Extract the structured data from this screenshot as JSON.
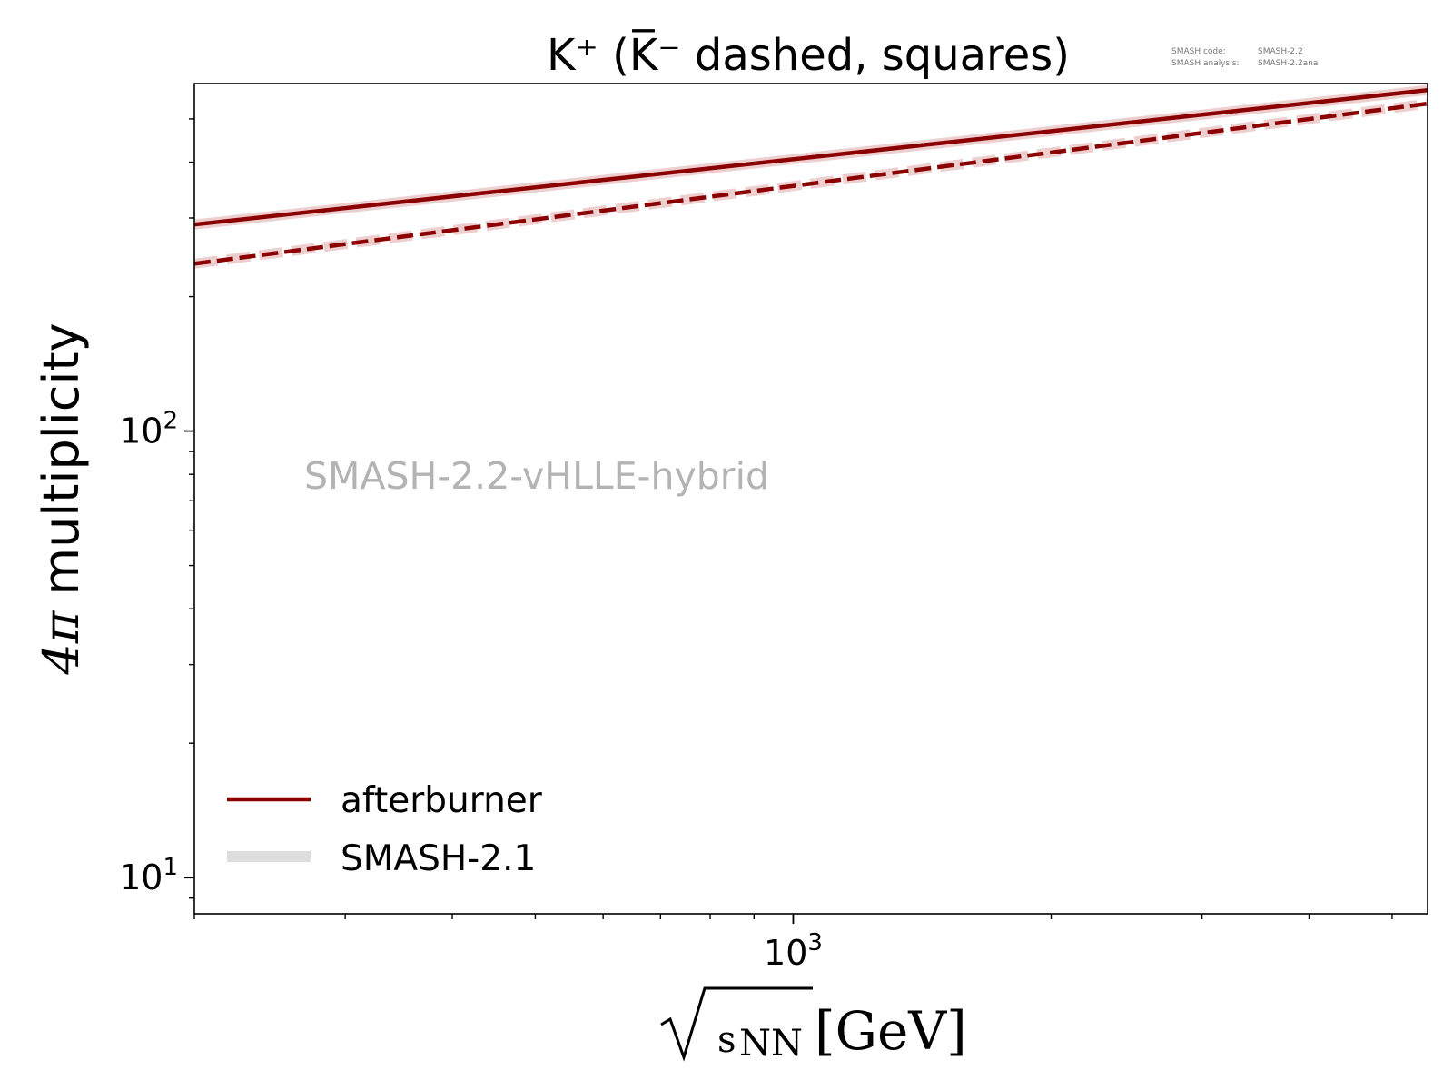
{
  "chart_data": {
    "type": "line",
    "title": "K⁺ (K̅⁻ dashed, squares)",
    "xlabel": "[GeV]",
    "xlabel_radicand": "s",
    "xlabel_radicand_sub": "NN",
    "ylabel_symbol": "4π",
    "ylabel_text": " multiplicity",
    "xscale": "log",
    "yscale": "log",
    "xlim": [
      200,
      5500
    ],
    "ylim": [
      8.3,
      600
    ],
    "x_major_ticks": [
      {
        "value": 1000,
        "base": "10",
        "exp": "3"
      }
    ],
    "x_minor_ticks": [
      200,
      300,
      400,
      500,
      600,
      700,
      800,
      900,
      2000,
      3000,
      4000,
      5000
    ],
    "y_major_ticks": [
      {
        "value": 10,
        "base": "10",
        "exp": "1"
      },
      {
        "value": 100,
        "base": "10",
        "exp": "2"
      }
    ],
    "y_minor_ticks": [
      9,
      20,
      30,
      40,
      50,
      60,
      70,
      80,
      90,
      200,
      300,
      400,
      500
    ],
    "grid": false,
    "legend_position": "lower-left",
    "watermark": "SMASH-2.2-vHLLE-hybrid",
    "version_note": {
      "line1_label": "SMASH code:",
      "line1_value": "SMASH-2.2",
      "line2_label": "SMASH analysis:",
      "line2_value": "SMASH-2.2ana"
    },
    "series": [
      {
        "name": "SMASH-2.1",
        "style": "solid",
        "color": "#dddddd",
        "bg": true,
        "x": [
          200,
          5500
        ],
        "y": [
          290,
          580
        ]
      },
      {
        "name": "",
        "style": "dashed",
        "color": "#eecfcf",
        "bg": true,
        "x": [
          200,
          5500
        ],
        "y": [
          237,
          541
        ]
      },
      {
        "name": "",
        "style": "solid",
        "color": "#eecfcf",
        "bg": true,
        "x": [
          200,
          5500
        ],
        "y": [
          290,
          580
        ]
      },
      {
        "name": "afterburner",
        "style": "solid",
        "color": "#8b0000",
        "x": [
          200,
          5500
        ],
        "y": [
          290,
          580
        ]
      },
      {
        "name": "",
        "style": "dashed",
        "color": "#8b0000",
        "x": [
          200,
          5500
        ],
        "y": [
          237,
          541
        ]
      }
    ],
    "legend": [
      {
        "label": "afterburner",
        "color": "#8b0000",
        "style": "solid"
      },
      {
        "label": "SMASH-2.1",
        "color": "#dddddd",
        "style": "solid-thick"
      }
    ]
  }
}
